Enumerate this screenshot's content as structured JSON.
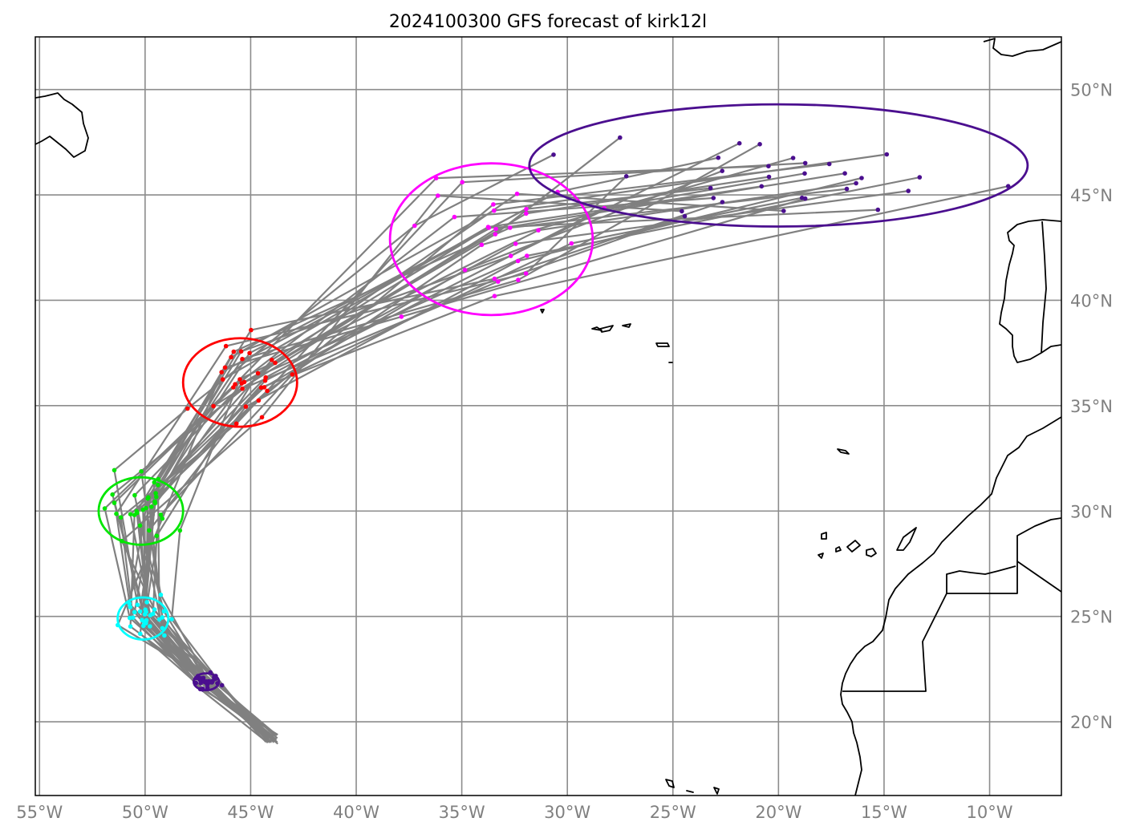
{
  "title": "2024100300 GFS forecast of kirk12l",
  "chart_data": {
    "type": "map",
    "title": "2024100300 GFS forecast of kirk12l",
    "projection": "PlateCarree",
    "extent": {
      "lon": [
        -55.2,
        -6.6
      ],
      "lat": [
        16.5,
        52.5
      ]
    },
    "gridlines": {
      "lon": [
        -55,
        -50,
        -45,
        -40,
        -35,
        -30,
        -25,
        -20,
        -15,
        -10
      ],
      "lat": [
        20,
        25,
        30,
        35,
        40,
        45,
        50
      ]
    },
    "x_tick_labels": [
      "55°W",
      "50°W",
      "45°W",
      "40°W",
      "35°W",
      "30°W",
      "25°W",
      "20°W",
      "15°W",
      "10°W"
    ],
    "y_tick_labels": [
      "20°N",
      "25°N",
      "30°N",
      "35°N",
      "40°N",
      "45°N",
      "50°N"
    ],
    "colors": {
      "track": "#808080",
      "grid": "#8c8c8c",
      "coastline": "#000000",
      "t0": "#4b0f8f",
      "t1": "#00ffff",
      "t2": "#00e600",
      "t3": "#ff0000",
      "t4": "#ff00ff",
      "t5": "#4b0f8f"
    },
    "ellipses": [
      {
        "color": "t0",
        "center": [
          -47.1,
          21.9
        ],
        "semi_axes_deg": [
          0.6,
          0.4
        ]
      },
      {
        "color": "t1",
        "center": [
          -50.1,
          24.9
        ],
        "semi_axes_deg": [
          1.2,
          1.0
        ]
      },
      {
        "color": "t2",
        "center": [
          -50.2,
          30.0
        ],
        "semi_axes_deg": [
          2.0,
          1.6
        ]
      },
      {
        "color": "t3",
        "center": [
          -45.5,
          36.1
        ],
        "semi_axes_deg": [
          2.7,
          2.1
        ]
      },
      {
        "color": "t4",
        "center": [
          -33.6,
          42.9
        ],
        "semi_axes_deg": [
          4.8,
          3.6
        ]
      },
      {
        "color": "t5",
        "center": [
          -20.0,
          46.4
        ],
        "semi_axes_deg": [
          11.8,
          2.9
        ]
      }
    ],
    "ensemble_tracks": 31,
    "track_style": "gray"
  }
}
